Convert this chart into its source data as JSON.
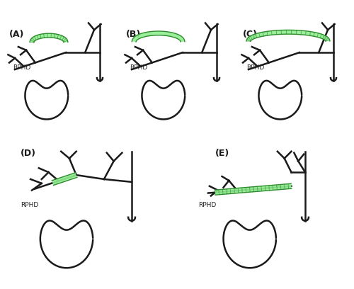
{
  "panel_labels": [
    "(A)",
    "(B)",
    "(C)",
    "(D)",
    "(E)"
  ],
  "background_color": "#ffffff",
  "duct_color": "#1a1a1a",
  "green_fill": "#90EE90",
  "green_edge": "#2d8b2d",
  "line_width": 1.8,
  "rphd_label": "RPHD"
}
